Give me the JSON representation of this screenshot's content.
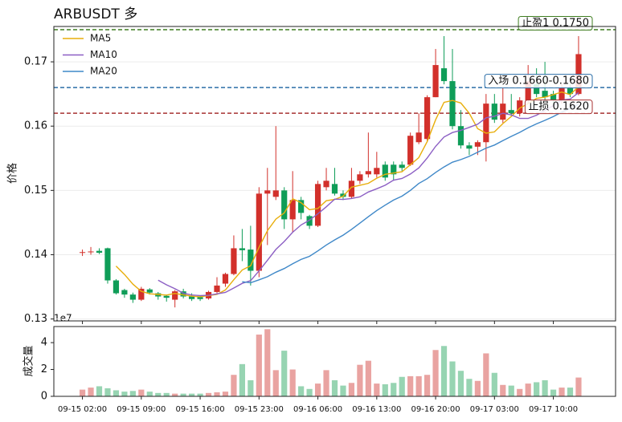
{
  "chart_data": [
    {
      "type": "candlestick",
      "title": "ARBUSDT 多",
      "ylabel": "价格",
      "open": [
        0.1403,
        0.1404,
        0.1406,
        0.141,
        0.136,
        0.1345,
        0.1338,
        0.133,
        0.1346,
        0.134,
        0.1336,
        0.133,
        0.1343,
        0.1335,
        0.1334,
        0.1332,
        0.1342,
        0.1355,
        0.137,
        0.141,
        0.1408,
        0.1375,
        0.1495,
        0.149,
        0.15,
        0.1455,
        0.1485,
        0.146,
        0.1445,
        0.1505,
        0.151,
        0.1495,
        0.149,
        0.1515,
        0.1525,
        0.1525,
        0.154,
        0.154,
        0.154,
        0.154,
        0.1575,
        0.158,
        0.1645,
        0.169,
        0.167,
        0.16,
        0.157,
        0.1568,
        0.1575,
        0.1635,
        0.161,
        0.1625,
        0.162,
        0.164,
        0.1665,
        0.1655,
        0.165,
        0.164,
        0.166,
        0.165
      ],
      "high": [
        0.1408,
        0.1412,
        0.141,
        0.1411,
        0.1362,
        0.1347,
        0.1341,
        0.135,
        0.1348,
        0.1342,
        0.1338,
        0.1345,
        0.1347,
        0.134,
        0.1336,
        0.1344,
        0.1365,
        0.1372,
        0.143,
        0.144,
        0.1445,
        0.1505,
        0.1535,
        0.16,
        0.1505,
        0.153,
        0.149,
        0.1462,
        0.1515,
        0.1535,
        0.1535,
        0.15,
        0.1535,
        0.153,
        0.159,
        0.156,
        0.1545,
        0.1545,
        0.1545,
        0.159,
        0.162,
        0.1648,
        0.172,
        0.174,
        0.172,
        0.1625,
        0.1575,
        0.1578,
        0.165,
        0.165,
        0.166,
        0.165,
        0.1645,
        0.1695,
        0.169,
        0.17,
        0.1655,
        0.1665,
        0.1665,
        0.174
      ],
      "low": [
        0.1398,
        0.14,
        0.1401,
        0.1355,
        0.1338,
        0.1333,
        0.1325,
        0.1328,
        0.1338,
        0.133,
        0.1327,
        0.1318,
        0.1332,
        0.1328,
        0.1328,
        0.133,
        0.134,
        0.135,
        0.1368,
        0.139,
        0.1352,
        0.1365,
        0.1415,
        0.1485,
        0.144,
        0.1435,
        0.1455,
        0.144,
        0.1443,
        0.15,
        0.1492,
        0.1485,
        0.1488,
        0.151,
        0.152,
        0.152,
        0.1515,
        0.1515,
        0.153,
        0.1538,
        0.1572,
        0.1575,
        0.1645,
        0.1665,
        0.1595,
        0.1565,
        0.1555,
        0.1555,
        0.1545,
        0.1605,
        0.1605,
        0.1615,
        0.1615,
        0.1635,
        0.1645,
        0.164,
        0.1635,
        0.1635,
        0.1645,
        0.1648
      ],
      "close": [
        0.1404,
        0.1405,
        0.1403,
        0.136,
        0.134,
        0.1338,
        0.133,
        0.1347,
        0.1341,
        0.1335,
        0.1333,
        0.1343,
        0.1335,
        0.1331,
        0.1331,
        0.1342,
        0.1352,
        0.137,
        0.141,
        0.1407,
        0.1375,
        0.1495,
        0.15,
        0.15,
        0.1455,
        0.1485,
        0.1465,
        0.1445,
        0.151,
        0.1515,
        0.1495,
        0.149,
        0.1515,
        0.1525,
        0.153,
        0.1535,
        0.152,
        0.1525,
        0.1535,
        0.1585,
        0.159,
        0.1645,
        0.1695,
        0.167,
        0.16,
        0.157,
        0.1565,
        0.1575,
        0.1635,
        0.161,
        0.1635,
        0.162,
        0.164,
        0.167,
        0.165,
        0.1645,
        0.164,
        0.166,
        0.165,
        0.1712
      ],
      "up_color": "#d2302b",
      "down_color": "#0f9d58",
      "series": [
        {
          "name": "MA5",
          "color": "#e8ae0c",
          "values": [
            null,
            null,
            null,
            null,
            0.13824,
            0.13692,
            0.13542,
            0.1343,
            0.13392,
            0.13382,
            0.13372,
            0.13398,
            0.13374,
            0.13354,
            0.13346,
            0.13364,
            0.13382,
            0.13452,
            0.1361,
            0.13762,
            0.13828,
            0.14114,
            0.14374,
            0.14554,
            0.1465,
            0.1487,
            0.1481,
            0.147,
            0.1472,
            0.1484,
            0.1486,
            0.1491,
            0.1505,
            0.1508,
            0.1511,
            0.1519,
            0.1525,
            0.1527,
            0.1529,
            0.154,
            0.1551,
            0.1576,
            0.161,
            0.1637,
            0.164,
            0.1636,
            0.162,
            0.1596,
            0.1589,
            0.1591,
            0.1604,
            0.1615,
            0.1628,
            0.1635,
            0.1643,
            0.1645,
            0.1649,
            0.1653,
            0.1649,
            0.16614
          ]
        },
        {
          "name": "MA10",
          "color": "#8c5fc4",
          "values": [
            null,
            null,
            null,
            null,
            null,
            null,
            null,
            null,
            null,
            0.13603,
            0.13532,
            0.1347,
            0.13402,
            0.13373,
            0.13364,
            0.13368,
            0.1339,
            0.13413,
            0.13482,
            0.13554,
            0.13596,
            0.13748,
            0.13913,
            0.14082,
            0.14206,
            0.14349,
            0.14462,
            0.14537,
            0.14637,
            0.14745,
            0.14865,
            0.1486,
            0.14875,
            0.149,
            0.14975,
            0.15025,
            0.1508,
            0.1516,
            0.15185,
            0.15255,
            0.1535,
            0.15505,
            0.15685,
            0.1583,
            0.159,
            0.15935,
            0.1598,
            0.1603,
            0.1613,
            0.16155,
            0.162,
            0.16175,
            0.1612,
            0.1612,
            0.1617,
            0.16245,
            0.1632,
            0.16405,
            0.1642,
            0.16522
          ]
        },
        {
          "name": "MA20",
          "color": "#3f88c8",
          "values": [
            null,
            null,
            null,
            null,
            null,
            null,
            null,
            null,
            null,
            null,
            null,
            null,
            null,
            null,
            null,
            null,
            null,
            null,
            null,
            0.13579,
            0.13564,
            0.13609,
            0.13658,
            0.13728,
            0.13785,
            0.13859,
            0.13926,
            0.13975,
            0.1406,
            0.1415,
            0.14231,
            0.14304,
            0.14394,
            0.14491,
            0.14591,
            0.14687,
            0.14771,
            0.14849,
            0.14911,
            0.15,
            0.15108,
            0.15183,
            0.1528,
            0.15365,
            0.15438,
            0.1548,
            0.1553,
            0.15595,
            0.15658,
            0.15705,
            0.15775,
            0.1584,
            0.15903,
            0.15975,
            0.16035,
            0.1609,
            0.1615,
            0.16218,
            0.16275,
            0.16339
          ]
        }
      ],
      "ylim": [
        0.1297,
        0.1755
      ],
      "yticks": [
        0.13,
        0.14,
        0.15,
        0.16,
        0.17
      ],
      "grid": true,
      "legend": "upper left",
      "lines": [
        {
          "label": "止盈1 0.1750",
          "value": 0.175,
          "color": "#3f7d20"
        },
        {
          "label": "入场 0.1660-0.1680",
          "value": 0.166,
          "color": "#2b6ea8"
        },
        {
          "label": "止损 0.1620",
          "value": 0.162,
          "color": "#a83232"
        }
      ]
    },
    {
      "type": "bar",
      "ylabel": "成交量",
      "offset_label": "1e7",
      "categories": [
        "09-15 02:00",
        null,
        null,
        null,
        null,
        null,
        null,
        "09-15 09:00",
        null,
        null,
        null,
        null,
        null,
        null,
        "09-15 16:00",
        null,
        null,
        null,
        null,
        null,
        null,
        "09-15 23:00",
        null,
        null,
        null,
        null,
        null,
        null,
        "09-16 06:00",
        null,
        null,
        null,
        null,
        null,
        null,
        "09-16 13:00",
        null,
        null,
        null,
        null,
        null,
        null,
        "09-16 20:00",
        null,
        null,
        null,
        null,
        null,
        null,
        "09-17 03:00",
        null,
        null,
        null,
        null,
        null,
        null,
        "09-17 10:00",
        null,
        null,
        null
      ],
      "values": [
        0.5,
        0.65,
        0.75,
        0.6,
        0.45,
        0.35,
        0.4,
        0.5,
        0.35,
        0.25,
        0.25,
        0.2,
        0.2,
        0.2,
        0.2,
        0.25,
        0.3,
        0.35,
        1.6,
        2.4,
        1.2,
        4.6,
        5.0,
        1.95,
        3.4,
        2.0,
        0.75,
        0.55,
        0.95,
        1.95,
        1.2,
        0.8,
        1.0,
        2.35,
        2.65,
        0.95,
        0.9,
        1.0,
        1.45,
        1.5,
        1.5,
        1.6,
        3.45,
        3.75,
        2.6,
        1.9,
        1.3,
        1.15,
        3.2,
        1.75,
        0.85,
        0.8,
        0.55,
        0.95,
        1.05,
        1.2,
        0.5,
        0.65,
        0.65,
        1.4
      ],
      "up_color": "#e9a3a1",
      "down_color": "#97d4b2",
      "ylim": [
        0,
        5.2
      ],
      "yticks": [
        0,
        2,
        4
      ]
    }
  ]
}
